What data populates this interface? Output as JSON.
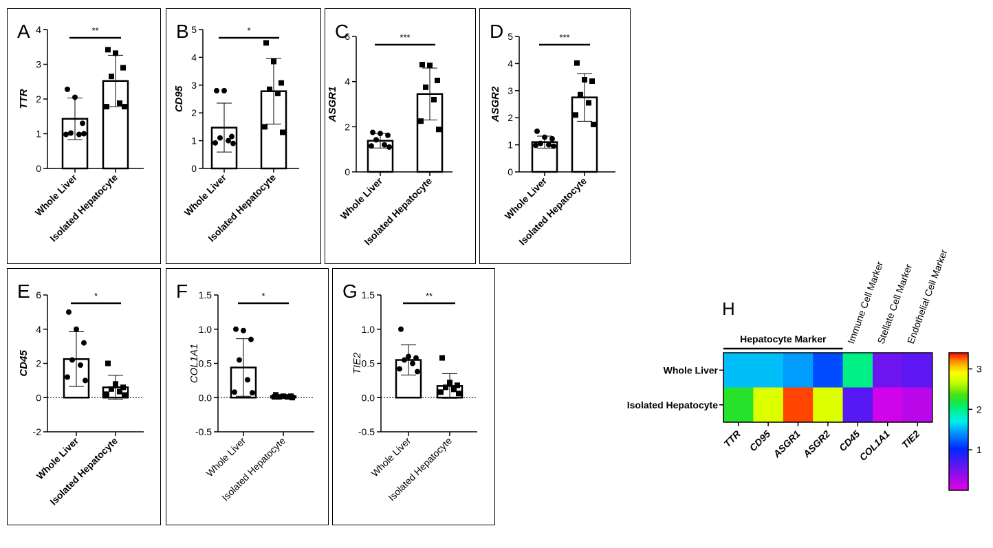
{
  "figure": {
    "group_labels": [
      "Whole Liver",
      "Isolated Hepatocyte"
    ]
  },
  "chart_data": [
    {
      "type": "bar",
      "panel_letter": "A",
      "ylabel": "TTR",
      "ylabel_italic": true,
      "categories": [
        "Whole Liver",
        "Isolated Hepatocyte"
      ],
      "values": [
        1.43,
        2.52
      ],
      "sd": [
        0.6,
        0.74
      ],
      "points": [
        [
          2.28,
          2.05,
          1.3,
          1.02,
          0.98,
          0.98,
          1.0
        ],
        [
          3.42,
          3.32,
          2.9,
          2.65,
          1.88,
          1.78,
          1.78
        ]
      ],
      "markers": [
        "circle",
        "square"
      ],
      "ylim": [
        0,
        4
      ],
      "yticks": [
        0,
        1,
        2,
        3,
        4
      ],
      "ytick_labels": [
        "0",
        "1",
        "2",
        "3",
        "4"
      ],
      "significance": "**"
    },
    {
      "type": "bar",
      "panel_letter": "B",
      "ylabel": "CD95",
      "ylabel_italic": true,
      "categories": [
        "Whole Liver",
        "Isolated Hepatocyte"
      ],
      "values": [
        1.47,
        2.78
      ],
      "sd": [
        0.88,
        1.18
      ],
      "points": [
        [
          2.8,
          2.8,
          1.15,
          1.1,
          1.0,
          0.92,
          0.9
        ],
        [
          4.52,
          3.85,
          3.08,
          2.85,
          2.7,
          1.5,
          1.3
        ]
      ],
      "markers": [
        "circle",
        "square"
      ],
      "ylim": [
        0,
        5
      ],
      "yticks": [
        0,
        1,
        2,
        3,
        4,
        5
      ],
      "ytick_labels": [
        "0",
        "1",
        "2",
        "3",
        "4",
        "5"
      ],
      "significance": "*"
    },
    {
      "type": "bar",
      "panel_letter": "C",
      "ylabel": "ASGR1",
      "ylabel_italic": true,
      "categories": [
        "Whole Liver",
        "Isolated Hepatocyte"
      ],
      "values": [
        1.38,
        3.45
      ],
      "sd": [
        0.32,
        1.15
      ],
      "points": [
        [
          1.75,
          1.7,
          1.62,
          1.42,
          1.2,
          1.15,
          1.1
        ],
        [
          4.75,
          4.72,
          4.05,
          3.75,
          3.2,
          2.25,
          1.88
        ]
      ],
      "markers": [
        "circle",
        "square"
      ],
      "ylim": [
        0,
        6
      ],
      "yticks": [
        0,
        2,
        4,
        6
      ],
      "ytick_labels": [
        "0",
        "2",
        "4",
        "6"
      ],
      "significance": "***"
    },
    {
      "type": "bar",
      "panel_letter": "D",
      "ylabel": "ASGR2",
      "ylabel_italic": true,
      "categories": [
        "Whole Liver",
        "Isolated Hepatocyte"
      ],
      "values": [
        1.1,
        2.75
      ],
      "sd": [
        0.22,
        0.88
      ],
      "points": [
        [
          1.5,
          1.28,
          1.22,
          1.05,
          1.0,
          0.98,
          0.95
        ],
        [
          4.02,
          3.4,
          3.35,
          2.85,
          2.55,
          2.1,
          1.75
        ]
      ],
      "markers": [
        "circle",
        "square"
      ],
      "ylim": [
        0,
        5
      ],
      "yticks": [
        0,
        1,
        2,
        3,
        4,
        5
      ],
      "ytick_labels": [
        "0",
        "1",
        "2",
        "3",
        "4",
        "5"
      ],
      "significance": "***"
    },
    {
      "type": "bar",
      "panel_letter": "E",
      "ylabel": "CD45",
      "ylabel_italic": true,
      "categories": [
        "Whole Liver",
        "Isolated Hepatocyte"
      ],
      "values": [
        2.25,
        0.6
      ],
      "sd": [
        1.6,
        0.7
      ],
      "points": [
        [
          5.0,
          4.0,
          3.2,
          2.2,
          1.9,
          1.2,
          1.0
        ],
        [
          2.0,
          0.8,
          0.6,
          0.5,
          0.35,
          0.2,
          0.15
        ]
      ],
      "markers": [
        "circle",
        "square"
      ],
      "ylim": [
        -2,
        6
      ],
      "yticks": [
        -2,
        0,
        2,
        4,
        6
      ],
      "ytick_labels": [
        "-2",
        "0",
        "2",
        "4",
        "6"
      ],
      "significance": "*",
      "zero_line": true
    },
    {
      "type": "bar",
      "panel_letter": "F",
      "ylabel": "COL1A1",
      "ylabel_italic": true,
      "categories": [
        "Whole Liver",
        "Isolated Hepatocyte"
      ],
      "values": [
        0.44,
        0.02
      ],
      "sd": [
        0.42,
        0.01
      ],
      "points": [
        [
          1.0,
          0.98,
          0.85,
          0.55,
          0.26,
          0.08,
          0.07
        ],
        [
          0.04,
          0.02,
          0.02,
          0.01,
          0.01,
          0.01,
          0.0
        ]
      ],
      "markers": [
        "circle",
        "square"
      ],
      "ylim": [
        -0.5,
        1.5
      ],
      "yticks": [
        -0.5,
        0,
        0.5,
        1,
        1.5
      ],
      "ytick_labels": [
        "-0.5",
        "0.0",
        "0.5",
        "1.0",
        "1.5"
      ],
      "significance": "*",
      "zero_line": true
    },
    {
      "type": "bar",
      "panel_letter": "G",
      "ylabel": "TIE2",
      "ylabel_italic": true,
      "categories": [
        "Whole Liver",
        "Isolated Hepatocyte"
      ],
      "values": [
        0.55,
        0.17
      ],
      "sd": [
        0.22,
        0.18
      ],
      "points": [
        [
          1.0,
          0.6,
          0.58,
          0.55,
          0.5,
          0.42,
          0.38
        ],
        [
          0.58,
          0.22,
          0.18,
          0.15,
          0.12,
          0.08,
          0.06
        ]
      ],
      "markers": [
        "circle",
        "square"
      ],
      "ylim": [
        -0.5,
        1.5
      ],
      "yticks": [
        -0.5,
        0,
        0.5,
        1,
        1.5
      ],
      "ytick_labels": [
        "-0.5",
        "0.0",
        "0.5",
        "1.0",
        "1.5"
      ],
      "significance": "**",
      "zero_line": true
    },
    {
      "type": "heatmap",
      "panel_letter": "H",
      "rows": [
        "Whole Liver",
        "Isolated Hepatocyte"
      ],
      "columns": [
        "TTR",
        "CD95",
        "ASGR1",
        "ASGR2",
        "CD45",
        "COL1A1",
        "TIE2"
      ],
      "values": [
        [
          1.55,
          1.55,
          1.45,
          1.15,
          2.0,
          0.55,
          0.62
        ],
        [
          2.25,
          2.75,
          3.3,
          2.75,
          0.65,
          0.1,
          0.2
        ]
      ],
      "group_labels": [
        "Hepatocyte Marker",
        "Immune Cell Marker",
        "Stellate Cell Marker",
        "Endothelial Cell Marker"
      ],
      "colorbar": {
        "range": [
          0,
          3.4
        ],
        "ticks": [
          1,
          2,
          3
        ],
        "tick_labels": [
          "1",
          "2",
          "3"
        ]
      }
    }
  ]
}
